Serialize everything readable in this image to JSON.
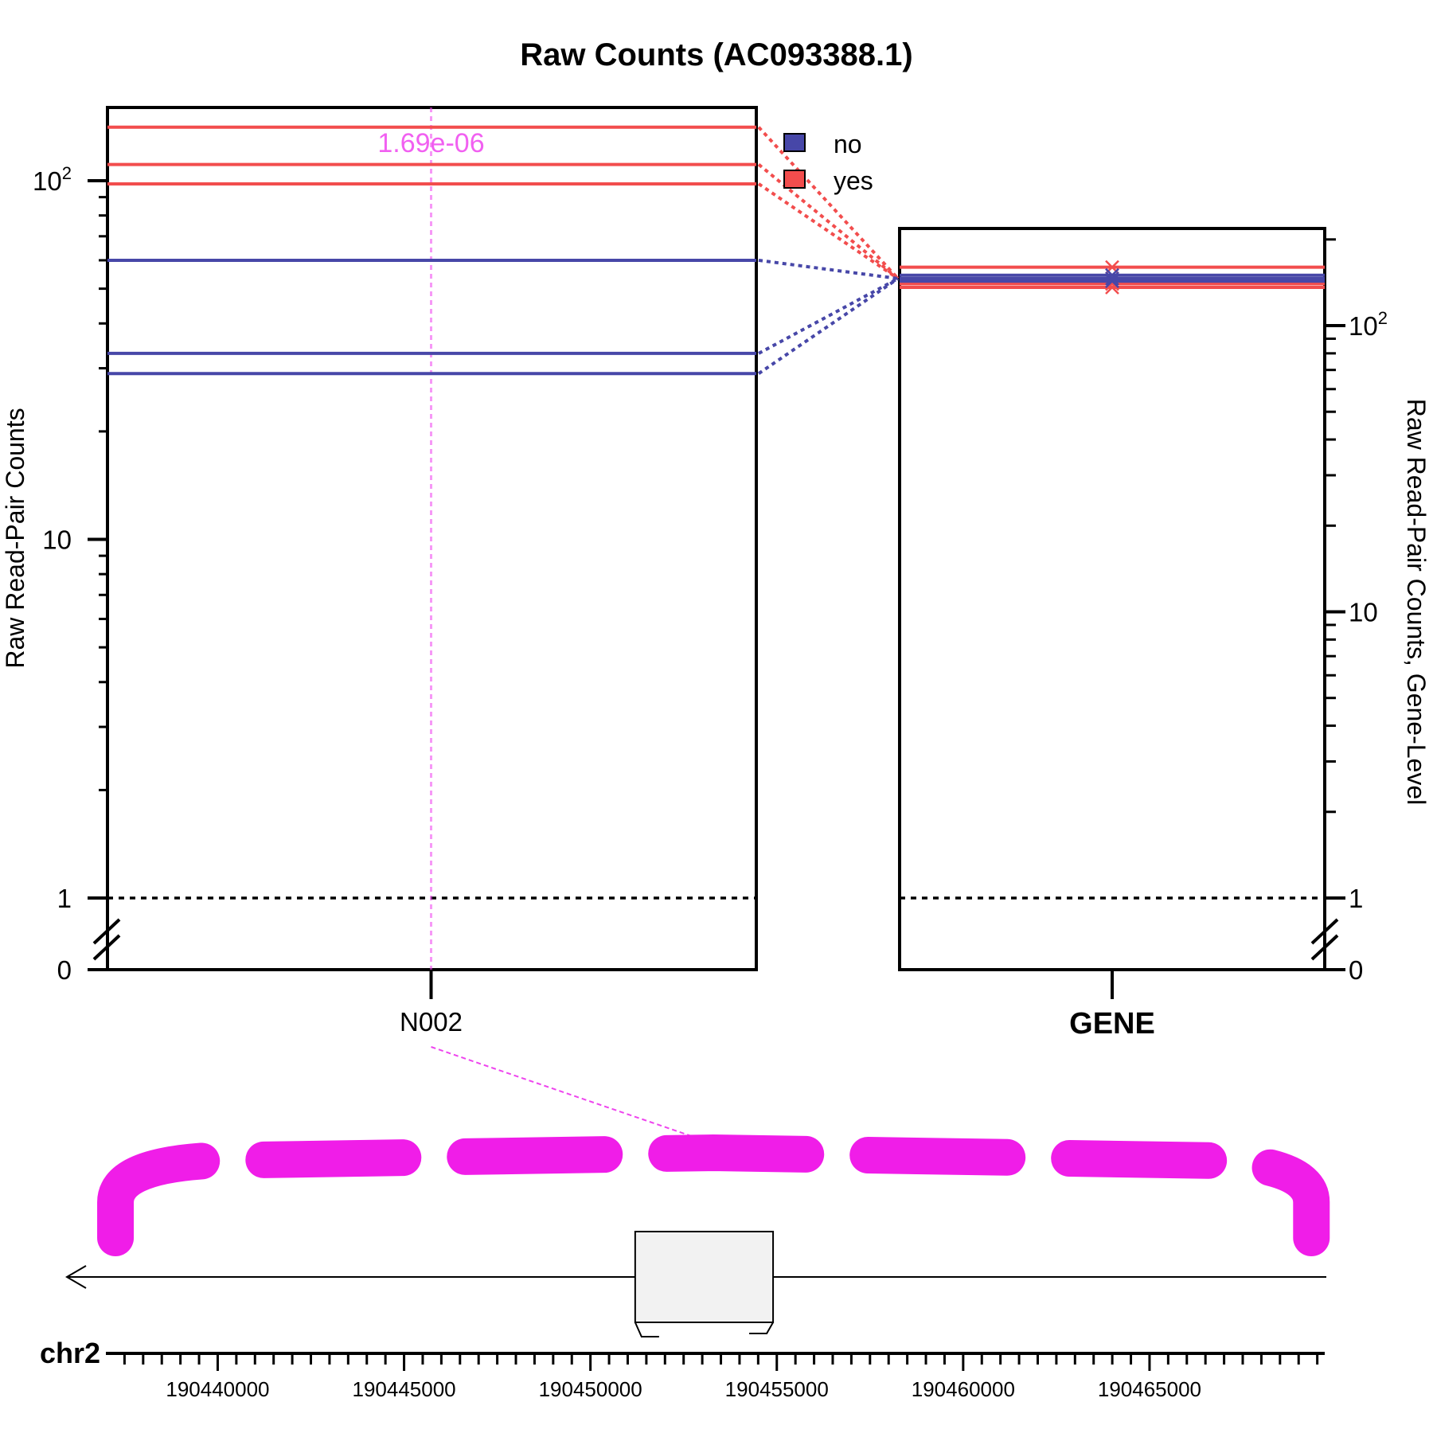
{
  "chart_data": {
    "type": "line",
    "title": "Raw Counts (AC093388.1)",
    "legend": {
      "placement": "top-center",
      "entries": [
        {
          "label": "no",
          "color": "#4747a8"
        },
        {
          "label": "yes",
          "color": "#f24d4d"
        }
      ]
    },
    "colors": {
      "no": "#4747a8",
      "yes": "#f24d4d",
      "pvalue": "#ee44ee",
      "transcript": "#f01de8"
    },
    "junction_panel": {
      "ylabel": "Raw Read-Pair Counts",
      "scale": "log",
      "axis_break": true,
      "y_ticks": [
        {
          "value": 0,
          "label": "0"
        },
        {
          "value": 1,
          "label": "1"
        },
        {
          "value": 10,
          "label": "10"
        },
        {
          "value": 100,
          "label": "10",
          "sup": "2"
        }
      ],
      "reference_line": 1,
      "categories": [
        "N002"
      ],
      "pvalue_label": "1.69e-06",
      "series": [
        {
          "group": "yes",
          "values": [
            141
          ]
        },
        {
          "group": "yes",
          "values": [
            111
          ]
        },
        {
          "group": "yes",
          "values": [
            98
          ]
        },
        {
          "group": "no",
          "values": [
            60
          ]
        },
        {
          "group": "no",
          "values": [
            33
          ]
        },
        {
          "group": "no",
          "values": [
            29
          ]
        }
      ]
    },
    "gene_panel": {
      "ylabel": "Raw Read-Pair Counts, Gene-Level",
      "scale": "log",
      "axis_break": true,
      "y_ticks": [
        {
          "value": 0,
          "label": "0"
        },
        {
          "value": 1,
          "label": "1"
        },
        {
          "value": 10,
          "label": "10"
        },
        {
          "value": 100,
          "label": "10",
          "sup": "2"
        }
      ],
      "reference_line": 1,
      "categories": [
        "GENE"
      ],
      "series": [
        {
          "group": "yes",
          "values": [
            160
          ]
        },
        {
          "group": "yes",
          "values": [
            140
          ]
        },
        {
          "group": "yes",
          "values": [
            136
          ]
        },
        {
          "group": "no",
          "values": [
            150
          ]
        },
        {
          "group": "no",
          "values": [
            143
          ]
        },
        {
          "group": "no",
          "values": [
            146
          ]
        }
      ]
    },
    "genome_track": {
      "chromosome": "chr2",
      "region": [
        190437000,
        190469700
      ],
      "exon": [
        190451200,
        190454900
      ],
      "strand": "-",
      "junction_N002": [
        190437300,
        190469300
      ],
      "tick_labels": [
        190440000,
        190445000,
        190450000,
        190455000,
        190460000,
        190465000
      ]
    }
  }
}
